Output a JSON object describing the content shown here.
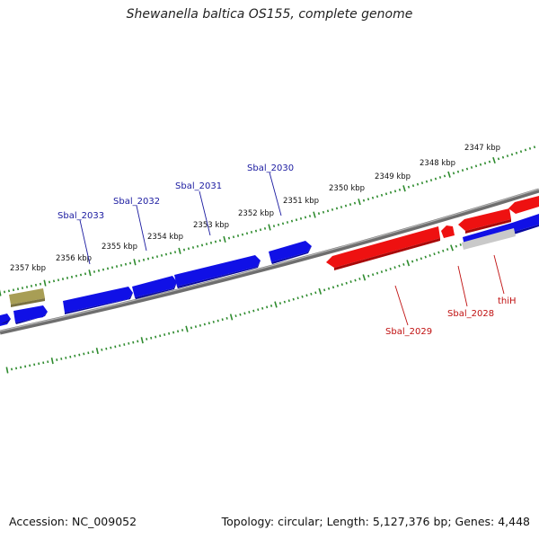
{
  "title": "Shewanella baltica OS155, complete genome",
  "footer": {
    "accession": "Accession: NC_009052",
    "summary": "Topology: circular; Length: 5,127,376 bp; Genes: 4,448"
  },
  "colors": {
    "forward_gene": "#1010e6",
    "reverse_gene": "#ee1111",
    "other_feature": "#a89e55",
    "backbone": "#777777",
    "ticks": "#2e8b2e",
    "forward_label": "#1a1aa0",
    "reverse_label": "#c01010"
  },
  "scale_labels": [
    "2347 kbp",
    "2348 kbp",
    "2349 kbp",
    "2350 kbp",
    "2351 kbp",
    "2352 kbp",
    "2353 kbp",
    "2354 kbp",
    "2355 kbp",
    "2356 kbp",
    "2357 kbp"
  ],
  "gene_labels": {
    "sbal_2030": "Sbal_2030",
    "sbal_2031": "Sbal_2031",
    "sbal_2032": "Sbal_2032",
    "sbal_2033": "Sbal_2033",
    "sbal_2029": "Sbal_2029",
    "sbal_2028": "Sbal_2028",
    "thih": "thiH"
  }
}
